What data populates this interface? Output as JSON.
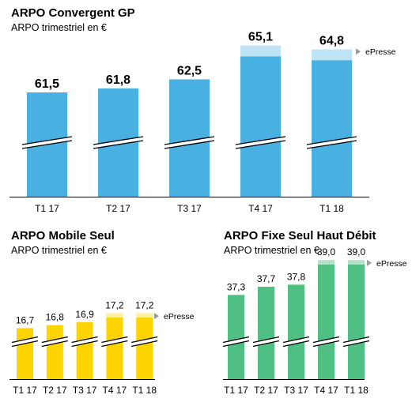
{
  "chart_data": [
    {
      "type": "bar",
      "title": "ARPO Convergent GP",
      "subtitle": "ARPO trimestriel en €",
      "categories": [
        "T1 17",
        "T2 17",
        "T3 17",
        "T4 17",
        "T1 18"
      ],
      "values": [
        61.5,
        61.8,
        62.5,
        65.1,
        64.8
      ],
      "value_labels": [
        "61,5",
        "61,8",
        "62,5",
        "65,1",
        "64,8"
      ],
      "highlight_categories": [
        "T4 17",
        "T1 18"
      ],
      "highlight_label": "ePresse",
      "axis_break": true,
      "bar_color": "#49b0e2",
      "highlight_color": "#bfe4f5"
    },
    {
      "type": "bar",
      "title": "ARPO Mobile Seul",
      "subtitle": "ARPO trimestriel en €",
      "categories": [
        "T1 17",
        "T2 17",
        "T3 17",
        "T4 17",
        "T1 18"
      ],
      "values": [
        16.7,
        16.8,
        16.9,
        17.2,
        17.2
      ],
      "value_labels": [
        "16,7",
        "16,8",
        "16,9",
        "17,2",
        "17,2"
      ],
      "highlight_categories": [
        "T4 17",
        "T1 18"
      ],
      "highlight_label": "ePresse",
      "axis_break": true,
      "bar_color": "#fdd400",
      "highlight_color": "#fff0a0"
    },
    {
      "type": "bar",
      "title": "ARPO Fixe Seul Haut Débit",
      "subtitle": "ARPO trimestriel en €",
      "categories": [
        "T1 17",
        "T2 17",
        "T3 17",
        "T4 17",
        "T1 18"
      ],
      "values": [
        37.3,
        37.7,
        37.8,
        39.0,
        39.0
      ],
      "value_labels": [
        "37,3",
        "37,7",
        "37,8",
        "39,0",
        "39,0"
      ],
      "highlight_categories": [
        "T4 17",
        "T1 18"
      ],
      "highlight_label": "ePresse",
      "axis_break": true,
      "bar_color": "#50bf84",
      "highlight_color": "#b3e2c8"
    }
  ]
}
